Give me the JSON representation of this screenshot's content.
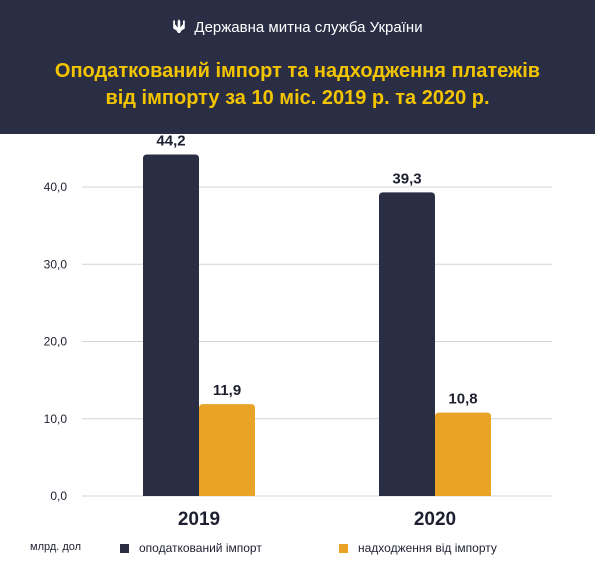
{
  "header": {
    "agency": "Державна митна служба України",
    "title_line1": "Оподаткований імпорт та надходження платежів",
    "title_line2": "від імпорту за 10 міс. 2019 р. та 2020 р.",
    "background": "#2a2e45",
    "title_color": "#f2c400",
    "icon": "trident-icon"
  },
  "legend": {
    "unit": "млрд. дол",
    "items": [
      {
        "label": "оподаткований  імпорт",
        "color": "#2a2e45"
      },
      {
        "label": "надходження від імпорту",
        "color": "#e9a326"
      }
    ],
    "placement": "bottom"
  },
  "chart_data": {
    "type": "bar",
    "categories": [
      "2019",
      "2020"
    ],
    "series": [
      {
        "name": "оподаткований  імпорт",
        "values": [
          44.2,
          39.3
        ],
        "color": "#2a2e45"
      },
      {
        "name": "надходження від імпорту",
        "values": [
          11.9,
          10.8
        ],
        "color": "#e9a326"
      }
    ],
    "value_labels": [
      [
        "44,2",
        "39,3"
      ],
      [
        "11,9",
        "10,8"
      ]
    ],
    "yticks": [
      0,
      10,
      20,
      30,
      40
    ],
    "ytick_labels": [
      "0,0",
      "10,0",
      "20,0",
      "30,0",
      "40,0"
    ],
    "ylim": [
      0,
      40
    ],
    "ylabel": "млрд. дол",
    "grid": true
  }
}
